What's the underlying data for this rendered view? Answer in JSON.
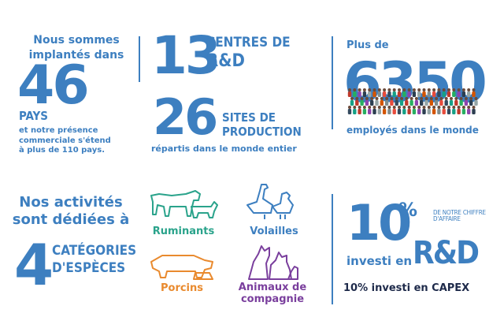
{
  "col1": {
    "intro": "Nous sommes implantés dans",
    "number": "46",
    "unit": "PAYS",
    "note": "et notre présence commerciale s'étend à plus de 110 pays."
  },
  "col2": {
    "rd_number": "13",
    "rd_label_line1": "CENTRES DE",
    "rd_label_line2": "R&D",
    "sites_number": "26",
    "sites_label_line1": "SITES DE",
    "sites_label_line2": "PRODUCTION",
    "sites_note": "répartis dans le monde entier"
  },
  "col3": {
    "intro": "Plus de",
    "number": "6350",
    "note": "employés dans le monde"
  },
  "activities": {
    "title": "Nos activités sont dédiées à",
    "number": "4",
    "label_line1": "CATÉGORIES",
    "label_line2": "D'ESPÈCES",
    "categories": [
      {
        "label": "Ruminants",
        "color": "#2aa38b",
        "icon": "cow-sheep-icon"
      },
      {
        "label": "Volailles",
        "color": "#3d7fc0",
        "icon": "goose-chicken-icon"
      },
      {
        "label": "Porcins",
        "color": "#e98a2e",
        "icon": "pig-icon"
      },
      {
        "label": "Animaux de compagnie",
        "color": "#7a3f9d",
        "icon": "cat-dog-icon"
      }
    ]
  },
  "investment": {
    "percent": "10",
    "percent_sign": "%",
    "side_note": "DE NOTRE CHIFFRE D'AFFAIRE",
    "invested_in": "investi en",
    "rd": "R&D",
    "capex": "10% investi en CAPEX"
  }
}
